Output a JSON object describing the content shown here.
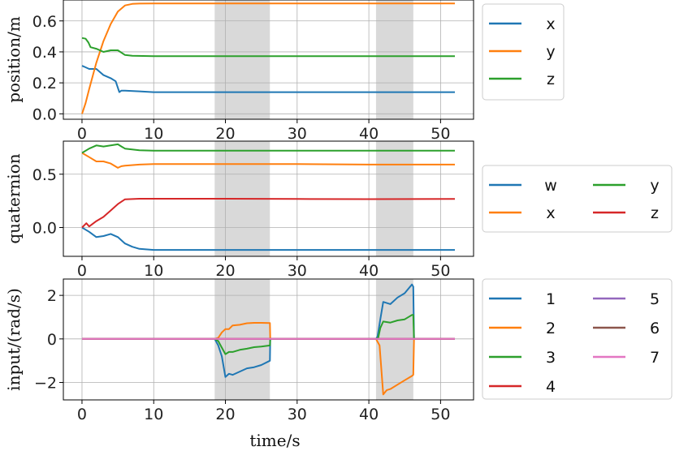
{
  "shaded_intervals": [
    [
      18.5,
      26.2
    ],
    [
      41.0,
      46.2
    ]
  ],
  "xlabel": "time/s",
  "xticks": [
    0,
    10,
    20,
    30,
    40,
    50
  ],
  "xlim": [
    -2.6,
    54.6
  ],
  "colors": {
    "blue": "#1f77b4",
    "orange": "#ff7f0e",
    "green": "#2ca02c",
    "red": "#d62728",
    "purple": "#9467bd",
    "brown": "#8c564b",
    "pink": "#e377c2",
    "shade": "#d9d9d9",
    "grid": "#b0b0b0"
  },
  "chart_data": [
    {
      "type": "line",
      "ylabel": "position/m",
      "ylim": [
        -0.035,
        0.735
      ],
      "yticks": [
        0.0,
        0.2,
        0.4,
        0.6
      ],
      "ytick_labels": [
        "0.0",
        "0.2",
        "0.4",
        "0.6"
      ],
      "grid": true,
      "legend": "right",
      "legend_cols": 1,
      "series": [
        {
          "name": "x",
          "color": "blue",
          "x": [
            0,
            0.5,
            1,
            2,
            3,
            4,
            4.7,
            5.2,
            5.5,
            6,
            8,
            10,
            20,
            30,
            40,
            52
          ],
          "y": [
            0.31,
            0.3,
            0.29,
            0.29,
            0.25,
            0.23,
            0.21,
            0.14,
            0.15,
            0.15,
            0.145,
            0.14,
            0.14,
            0.14,
            0.14,
            0.14
          ]
        },
        {
          "name": "y",
          "color": "orange",
          "x": [
            0,
            0.5,
            1,
            2,
            3,
            4,
            5,
            6,
            7,
            8,
            10,
            20,
            30,
            40,
            52
          ],
          "y": [
            0.0,
            0.07,
            0.16,
            0.33,
            0.47,
            0.58,
            0.66,
            0.7,
            0.71,
            0.712,
            0.713,
            0.713,
            0.713,
            0.713,
            0.713
          ]
        },
        {
          "name": "z",
          "color": "green",
          "x": [
            0,
            0.5,
            0.9,
            1.2,
            2,
            3,
            4,
            5,
            6,
            7,
            10,
            20,
            30,
            40,
            52
          ],
          "y": [
            0.49,
            0.485,
            0.46,
            0.43,
            0.42,
            0.4,
            0.41,
            0.41,
            0.38,
            0.375,
            0.372,
            0.372,
            0.372,
            0.372,
            0.372
          ]
        }
      ]
    },
    {
      "type": "line",
      "ylabel": "quaternion",
      "ylim": [
        -0.27,
        0.81
      ],
      "yticks": [
        0.0,
        0.5
      ],
      "ytick_labels": [
        "0.0",
        "0.5"
      ],
      "grid": true,
      "legend": "right",
      "legend_cols": 2,
      "series": [
        {
          "name": "w",
          "color": "blue",
          "x": [
            0,
            1,
            2,
            3,
            4,
            5,
            6,
            7,
            8,
            10,
            20,
            30,
            40,
            52
          ],
          "y": [
            0.0,
            -0.04,
            -0.09,
            -0.08,
            -0.06,
            -0.09,
            -0.15,
            -0.18,
            -0.2,
            -0.21,
            -0.21,
            -0.21,
            -0.21,
            -0.21
          ]
        },
        {
          "name": "x",
          "color": "orange",
          "x": [
            0,
            1,
            2,
            3,
            4,
            5,
            5.5,
            6,
            8,
            10,
            20,
            30,
            40,
            52
          ],
          "y": [
            0.7,
            0.66,
            0.62,
            0.62,
            0.6,
            0.56,
            0.575,
            0.58,
            0.59,
            0.595,
            0.595,
            0.595,
            0.59,
            0.59
          ]
        },
        {
          "name": "y",
          "color": "green",
          "x": [
            0,
            1,
            2,
            3,
            4,
            5,
            5.5,
            6,
            8,
            10,
            20,
            30,
            40,
            52
          ],
          "y": [
            0.7,
            0.74,
            0.77,
            0.76,
            0.77,
            0.78,
            0.76,
            0.74,
            0.725,
            0.72,
            0.72,
            0.72,
            0.72,
            0.72
          ]
        },
        {
          "name": "z",
          "color": "red",
          "x": [
            0,
            0.6,
            1,
            2,
            3,
            4,
            5,
            6,
            8,
            10,
            20,
            30,
            40,
            52
          ],
          "y": [
            0.0,
            0.04,
            0.01,
            0.06,
            0.1,
            0.16,
            0.22,
            0.265,
            0.27,
            0.27,
            0.27,
            0.268,
            0.266,
            0.268
          ]
        }
      ]
    },
    {
      "type": "line",
      "ylabel": "input/(rad/s)",
      "ylim": [
        -2.8,
        2.75
      ],
      "yticks": [
        -2,
        0,
        2
      ],
      "ytick_labels": [
        "−2",
        "0",
        "2"
      ],
      "grid": true,
      "legend": "right",
      "legend_cols": 2,
      "xlabel": "time/s",
      "series": [
        {
          "name": "1",
          "color": "blue",
          "x": [
            0,
            18.5,
            19.0,
            19.5,
            20.0,
            20.5,
            21,
            22,
            23,
            24,
            25,
            26.2,
            26.25,
            26.3,
            41.0,
            41.2,
            41.4,
            41.6,
            42,
            43,
            44,
            45,
            46,
            46.2,
            46.3,
            52
          ],
          "y": [
            0,
            0,
            -0.3,
            -0.8,
            -1.75,
            -1.6,
            -1.65,
            -1.5,
            -1.35,
            -1.3,
            -1.2,
            -1.0,
            0,
            0,
            0,
            0.1,
            0.5,
            0.9,
            1.7,
            1.6,
            1.9,
            2.1,
            2.5,
            2.4,
            0,
            0
          ]
        },
        {
          "name": "2",
          "color": "orange",
          "x": [
            0,
            18.5,
            19.0,
            19.5,
            20.0,
            20.5,
            21,
            22,
            23,
            24,
            25,
            26.2,
            26.25,
            26.3,
            41.0,
            41.5,
            42.0,
            42.5,
            43,
            44,
            45,
            46,
            46.2,
            46.3,
            52
          ],
          "y": [
            0,
            0,
            0.05,
            0.3,
            0.45,
            0.45,
            0.62,
            0.65,
            0.72,
            0.74,
            0.74,
            0.73,
            0,
            0,
            0,
            -0.3,
            -2.55,
            -2.35,
            -2.3,
            -2.1,
            -1.9,
            -1.7,
            -1.65,
            0,
            0
          ]
        },
        {
          "name": "3",
          "color": "green",
          "x": [
            0,
            18.5,
            19.0,
            19.5,
            20.0,
            20.5,
            21,
            22,
            23,
            24,
            25,
            26.2,
            26.25,
            26.3,
            41.0,
            41.3,
            41.6,
            42,
            43,
            44,
            45,
            46,
            46.2,
            46.3,
            52
          ],
          "y": [
            0,
            0,
            -0.1,
            -0.4,
            -0.7,
            -0.6,
            -0.6,
            -0.5,
            -0.45,
            -0.38,
            -0.35,
            -0.3,
            0,
            0,
            0,
            0.05,
            0.5,
            0.8,
            0.75,
            0.85,
            0.9,
            1.1,
            1.1,
            0,
            0
          ]
        },
        {
          "name": "4",
          "color": "red",
          "x": [
            0,
            52
          ],
          "y": [
            0,
            0
          ]
        },
        {
          "name": "5",
          "color": "purple",
          "x": [
            0,
            52
          ],
          "y": [
            0,
            0
          ]
        },
        {
          "name": "6",
          "color": "brown",
          "x": [
            0,
            52
          ],
          "y": [
            0,
            0
          ]
        },
        {
          "name": "7",
          "color": "pink",
          "x": [
            0,
            52
          ],
          "y": [
            0,
            0
          ]
        }
      ]
    }
  ]
}
